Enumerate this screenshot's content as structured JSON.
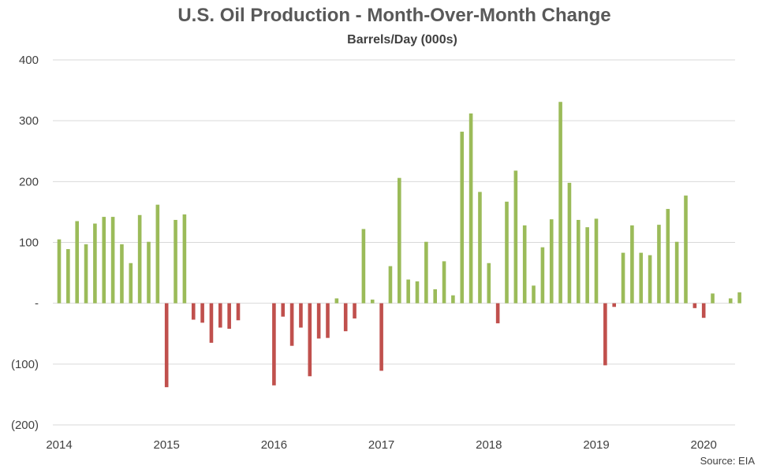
{
  "chart_data": {
    "type": "bar",
    "title": "U.S. Oil Production - Month-Over-Month Change",
    "subtitle": "Barrels/Day (000s)",
    "source": "Source: EIA",
    "ylim": [
      -200,
      400
    ],
    "yticks": [
      {
        "value": 400,
        "label": "400"
      },
      {
        "value": 300,
        "label": "300"
      },
      {
        "value": 200,
        "label": "200"
      },
      {
        "value": 100,
        "label": "100"
      },
      {
        "value": 0,
        "label": "-"
      },
      {
        "value": -100,
        "label": "(100)"
      },
      {
        "value": -200,
        "label": "(200)"
      }
    ],
    "xticks": [
      "2014",
      "2015",
      "2016",
      "2017",
      "2018",
      "2019",
      "2020"
    ],
    "grid": true,
    "colors": {
      "positive": "#9BBB59",
      "negative": "#C0504D",
      "grid": "#d9d9d9"
    },
    "start": "2014-01",
    "values": [
      105,
      89,
      135,
      97,
      131,
      142,
      142,
      97,
      66,
      145,
      101,
      162,
      -138,
      137,
      146,
      -27,
      -32,
      -65,
      -40,
      -42,
      -28,
      0,
      0,
      0,
      -135,
      -22,
      -70,
      -40,
      -120,
      -58,
      -57,
      8,
      -46,
      -25,
      122,
      6,
      -111,
      61,
      206,
      39,
      36,
      101,
      23,
      69,
      13,
      282,
      312,
      183,
      66,
      -33,
      167,
      218,
      128,
      29,
      92,
      138,
      331,
      198,
      137,
      125,
      139,
      -102,
      -6,
      83,
      128,
      83,
      79,
      129,
      155,
      101,
      177,
      -8,
      -24,
      16,
      0,
      8,
      18
    ]
  }
}
